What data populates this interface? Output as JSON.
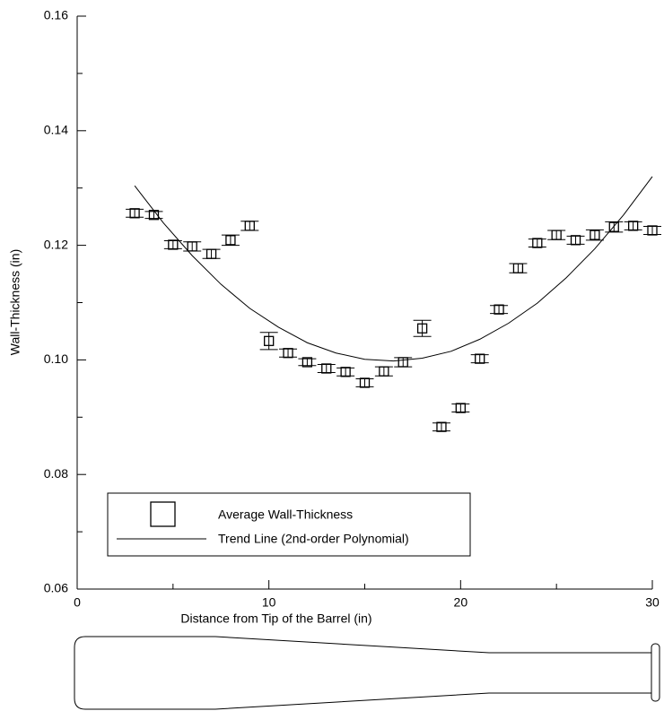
{
  "chart_data": {
    "type": "scatter",
    "xlabel": "Distance from Tip of the Barrel (in)",
    "ylabel": "Wall-Thickness (in)",
    "xlim": [
      0,
      30
    ],
    "ylim": [
      0.06,
      0.16
    ],
    "xticks": [
      0,
      10,
      20,
      30
    ],
    "xminorticks": [
      5,
      15,
      25
    ],
    "yticks": [
      0.06,
      0.08,
      {
        "value": 0.1,
        "label": "0.10"
      },
      0.12,
      0.14,
      0.16
    ],
    "yminorticks": [
      0.07,
      0.09,
      0.11,
      0.13,
      0.15
    ],
    "series": [
      {
        "name": "Average Wall-Thickness",
        "color": "#000000",
        "x": [
          3,
          4,
          5,
          6,
          7,
          8,
          9,
          10,
          11,
          12,
          13,
          14,
          15,
          16,
          17,
          18,
          19,
          20,
          21,
          22,
          23,
          24,
          25,
          26,
          27,
          28,
          29,
          30
        ],
        "values": [
          0.1256,
          0.1253,
          0.1201,
          0.1198,
          0.1185,
          0.1209,
          0.1234,
          0.1033,
          0.1012,
          0.0996,
          0.0985,
          0.0979,
          0.096,
          0.098,
          0.0996,
          0.1055,
          0.0883,
          0.0916,
          0.1002,
          0.1088,
          0.116,
          0.1204,
          0.1218,
          0.1209,
          0.1218,
          0.1232,
          0.1234,
          0.1226
        ],
        "errors": [
          0.0007,
          0.0006,
          0.0007,
          0.0008,
          0.0008,
          0.0009,
          0.0008,
          0.0015,
          0.0007,
          0.0006,
          0.0007,
          0.0007,
          0.0007,
          0.0008,
          0.0008,
          0.0014,
          0.0007,
          0.0007,
          0.0007,
          0.0007,
          0.0008,
          0.0007,
          0.0008,
          0.0007,
          0.0009,
          0.0009,
          0.0007,
          0.0007
        ]
      },
      {
        "name": "Trend Line (2nd-order Polynomial)",
        "color": "#000000",
        "x": [
          3,
          4.5,
          6,
          7.5,
          9,
          10.5,
          12,
          13.5,
          15,
          16.5,
          18,
          19.5,
          21,
          22.5,
          24,
          25.5,
          27,
          28.5,
          30
        ],
        "values": [
          0.1304,
          0.1239,
          0.1182,
          0.1132,
          0.109,
          0.1057,
          0.103,
          0.1012,
          0.1001,
          0.0998,
          0.1003,
          0.1015,
          0.1036,
          0.1064,
          0.1099,
          0.1143,
          0.1194,
          0.1253,
          0.132
        ]
      }
    ]
  }
}
